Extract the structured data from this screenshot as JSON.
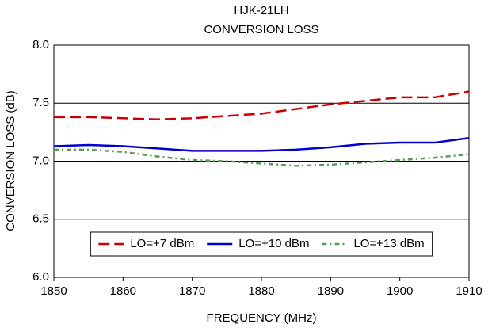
{
  "chart_data": {
    "type": "line",
    "title": "HJK-21LH",
    "subtitle": "CONVERSION LOSS",
    "x_label": "FREQUENCY (MHz)",
    "y_label": "CONVERSION LOSS (dB)",
    "x": [
      1850,
      1855,
      1860,
      1865,
      1870,
      1875,
      1880,
      1885,
      1890,
      1895,
      1900,
      1905,
      1910
    ],
    "series": [
      {
        "name": "LO=+7 dBm",
        "color": "#cc0000",
        "style": "dashed",
        "values": [
          7.38,
          7.38,
          7.37,
          7.36,
          7.37,
          7.39,
          7.41,
          7.45,
          7.49,
          7.52,
          7.55,
          7.55,
          7.6
        ]
      },
      {
        "name": "LO=+10 dBm",
        "color": "#0000cc",
        "style": "solid",
        "values": [
          7.13,
          7.14,
          7.13,
          7.11,
          7.09,
          7.09,
          7.09,
          7.1,
          7.12,
          7.15,
          7.16,
          7.16,
          7.2
        ]
      },
      {
        "name": "LO=+13 dBm",
        "color": "#5a9a5a",
        "style": "dashdot",
        "values": [
          7.1,
          7.1,
          7.08,
          7.04,
          7.01,
          7.0,
          6.98,
          6.96,
          6.97,
          6.99,
          7.01,
          7.03,
          7.06
        ]
      }
    ],
    "xlim": [
      1850,
      1910
    ],
    "xticks": [
      1850,
      1860,
      1870,
      1880,
      1890,
      1900,
      1910
    ],
    "ylim": [
      6.0,
      8.0
    ],
    "yticks": [
      {
        "value": 6.0,
        "label": "6.0"
      },
      {
        "value": 6.5,
        "label": "6.5"
      },
      {
        "value": 7.0,
        "label": "7.0"
      },
      {
        "value": 7.5,
        "label": "7.5"
      },
      {
        "value": 8.0,
        "label": "8.0"
      }
    ],
    "grid": true,
    "legend": "lower center"
  }
}
